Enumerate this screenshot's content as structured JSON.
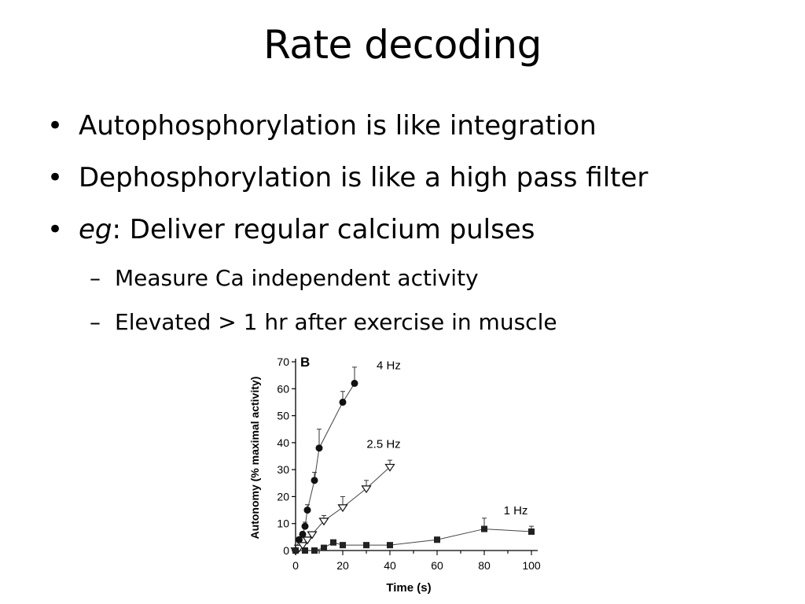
{
  "slide": {
    "title": "Rate decoding",
    "bullets": [
      {
        "text": "Autophosphorylation is like integration"
      },
      {
        "text": "Dephosphorylation is like a high pass filter"
      },
      {
        "em": "eg",
        "text": ": Deliver regular calcium pulses"
      }
    ],
    "subbullets": [
      {
        "text": "Measure Ca independent activity"
      },
      {
        "text": "Elevated > 1 hr after exercise in muscle"
      }
    ],
    "bullet_glyph": "•",
    "sub_glyph": "–"
  },
  "chart_data": {
    "type": "line",
    "panel_label": "B",
    "xlabel": "Time (s)",
    "ylabel": "Autonomy (% maximal activity)",
    "xlim": [
      0,
      100
    ],
    "ylim": [
      0,
      70
    ],
    "xticks": [
      0,
      20,
      40,
      60,
      80,
      100
    ],
    "yticks": [
      0,
      10,
      20,
      30,
      40,
      50,
      60,
      70
    ],
    "grid": false,
    "legend": "inline labels",
    "series": [
      {
        "name": "4 Hz",
        "marker": "filled-circle",
        "x": [
          0,
          1.5,
          3,
          4,
          5,
          8,
          10,
          20,
          25
        ],
        "y": [
          0,
          4,
          6,
          9,
          15,
          26,
          38,
          55,
          62
        ],
        "err": [
          0,
          1,
          1,
          1.5,
          2,
          3,
          7,
          4,
          6
        ]
      },
      {
        "name": "2.5 Hz",
        "marker": "open-triangle-down",
        "x": [
          0,
          1.5,
          3,
          5,
          7,
          12,
          20,
          30,
          40
        ],
        "y": [
          0,
          1,
          2,
          4,
          6,
          11,
          16,
          23,
          31
        ],
        "err": [
          0,
          0.5,
          0.5,
          1,
          1,
          2,
          4,
          3,
          2.5
        ]
      },
      {
        "name": "1 Hz",
        "marker": "filled-square",
        "x": [
          0,
          4,
          8,
          12,
          16,
          20,
          30,
          40,
          60,
          80,
          100
        ],
        "y": [
          0,
          0,
          0,
          1,
          3,
          2,
          2,
          2,
          4,
          8,
          7
        ],
        "err": [
          0,
          0,
          0,
          0.5,
          0.5,
          0.5,
          0.5,
          0.5,
          1,
          4,
          2
        ]
      }
    ]
  }
}
